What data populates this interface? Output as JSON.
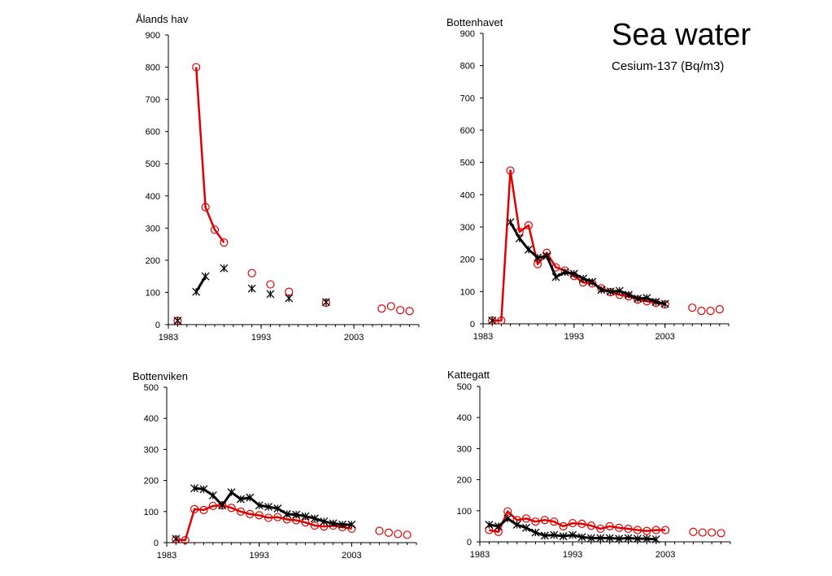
{
  "page": {
    "title": "Sea water",
    "subtitle": "Cesium-137 (Bq/m3)"
  },
  "colors": {
    "series_red": "#e00000",
    "series_black": "#000000",
    "axis": "#000000"
  },
  "chart_data": [
    {
      "type": "line",
      "title": "Ålands hav",
      "ylim": [
        0,
        900
      ],
      "yticks": [
        0,
        100,
        200,
        300,
        400,
        500,
        600,
        700,
        800,
        900
      ],
      "xlim": [
        1983,
        2010
      ],
      "xticks": [
        1983,
        1993,
        2003
      ],
      "grid": false,
      "series": [
        {
          "marker": "circle",
          "color": "red",
          "points": [
            [
              1984,
              12
            ],
            [
              1986,
              800
            ],
            [
              1987,
              365
            ],
            [
              1988,
              295
            ],
            [
              1989,
              255
            ],
            [
              1992,
              160
            ],
            [
              1994,
              125
            ],
            [
              1996,
              102
            ],
            [
              2000,
              68
            ],
            [
              2006,
              50
            ],
            [
              2007,
              57
            ],
            [
              2008,
              45
            ],
            [
              2009,
              42
            ]
          ],
          "connected_segments": [
            [
              1986,
              1989
            ]
          ]
        },
        {
          "marker": "asterisk",
          "color": "black",
          "points": [
            [
              1984,
              12
            ],
            [
              1986,
              102
            ],
            [
              1987,
              150
            ],
            [
              1989,
              175
            ],
            [
              1992,
              112
            ],
            [
              1994,
              95
            ],
            [
              1996,
              82
            ],
            [
              2000,
              70
            ]
          ],
          "connected_segments": [
            [
              1986,
              1987
            ]
          ]
        }
      ]
    },
    {
      "type": "line",
      "title": "Bottenhavet",
      "ylim": [
        0,
        900
      ],
      "yticks": [
        0,
        100,
        200,
        300,
        400,
        500,
        600,
        700,
        800,
        900
      ],
      "xlim": [
        1983,
        2010
      ],
      "xticks": [
        1983,
        1993,
        2003
      ],
      "grid": false,
      "series": [
        {
          "marker": "circle",
          "color": "red",
          "points": [
            [
              1984,
              10
            ],
            [
              1985,
              10
            ],
            [
              1986,
              475
            ],
            [
              1987,
              285
            ],
            [
              1988,
              305
            ],
            [
              1989,
              185
            ],
            [
              1990,
              220
            ],
            [
              1991,
              175
            ],
            [
              1992,
              165
            ],
            [
              1993,
              148
            ],
            [
              1994,
              128
            ],
            [
              1995,
              125
            ],
            [
              1996,
              110
            ],
            [
              1997,
              98
            ],
            [
              1998,
              90
            ],
            [
              1999,
              85
            ],
            [
              2000,
              75
            ],
            [
              2001,
              70
            ],
            [
              2002,
              65
            ],
            [
              2003,
              60
            ],
            [
              2006,
              50
            ],
            [
              2007,
              40
            ],
            [
              2008,
              40
            ],
            [
              2009,
              45
            ]
          ],
          "connected_segments": [
            [
              1984,
              2003
            ]
          ]
        },
        {
          "marker": "asterisk",
          "color": "black",
          "points": [
            [
              1984,
              10
            ],
            [
              1986,
              315
            ],
            [
              1987,
              265
            ],
            [
              1988,
              230
            ],
            [
              1989,
              205
            ],
            [
              1990,
              210
            ],
            [
              1991,
              145
            ],
            [
              1992,
              160
            ],
            [
              1993,
              155
            ],
            [
              1994,
              140
            ],
            [
              1995,
              130
            ],
            [
              1996,
              105
            ],
            [
              1997,
              100
            ],
            [
              1998,
              102
            ],
            [
              1999,
              90
            ],
            [
              2000,
              78
            ],
            [
              2001,
              80
            ],
            [
              2002,
              68
            ],
            [
              2003,
              62
            ]
          ],
          "connected_segments": [
            [
              1986,
              2003
            ]
          ]
        }
      ]
    },
    {
      "type": "line",
      "title": "Bottenviken",
      "ylim": [
        0,
        500
      ],
      "yticks": [
        0,
        100,
        200,
        300,
        400,
        500
      ],
      "xlim": [
        1983,
        2010
      ],
      "xticks": [
        1983,
        1993,
        2003
      ],
      "grid": false,
      "series": [
        {
          "marker": "circle",
          "color": "red",
          "points": [
            [
              1984,
              10
            ],
            [
              1985,
              8
            ],
            [
              1986,
              108
            ],
            [
              1987,
              105
            ],
            [
              1988,
              118
            ],
            [
              1989,
              120
            ],
            [
              1990,
              112
            ],
            [
              1991,
              100
            ],
            [
              1992,
              92
            ],
            [
              1993,
              88
            ],
            [
              1994,
              80
            ],
            [
              1995,
              82
            ],
            [
              1996,
              75
            ],
            [
              1997,
              72
            ],
            [
              1998,
              65
            ],
            [
              1999,
              55
            ],
            [
              2000,
              52
            ],
            [
              2001,
              55
            ],
            [
              2002,
              50
            ],
            [
              2003,
              45
            ],
            [
              2006,
              38
            ],
            [
              2007,
              32
            ],
            [
              2008,
              28
            ],
            [
              2009,
              25
            ]
          ],
          "connected_segments": [
            [
              1984,
              2003
            ]
          ]
        },
        {
          "marker": "asterisk",
          "color": "black",
          "points": [
            [
              1984,
              12
            ],
            [
              1986,
              175
            ],
            [
              1987,
              172
            ],
            [
              1988,
              152
            ],
            [
              1989,
              120
            ],
            [
              1990,
              162
            ],
            [
              1991,
              140
            ],
            [
              1992,
              145
            ],
            [
              1993,
              120
            ],
            [
              1994,
              115
            ],
            [
              1995,
              110
            ],
            [
              1996,
              92
            ],
            [
              1997,
              90
            ],
            [
              1998,
              85
            ],
            [
              1999,
              78
            ],
            [
              2000,
              68
            ],
            [
              2001,
              62
            ],
            [
              2002,
              58
            ],
            [
              2003,
              58
            ]
          ],
          "connected_segments": [
            [
              1986,
              2003
            ]
          ]
        }
      ]
    },
    {
      "type": "line",
      "title": "Kattegatt",
      "ylim": [
        0,
        500
      ],
      "yticks": [
        0,
        100,
        200,
        300,
        400,
        500
      ],
      "xlim": [
        1983,
        2010
      ],
      "xticks": [
        1983,
        1993,
        2003
      ],
      "grid": false,
      "series": [
        {
          "marker": "circle",
          "color": "red",
          "points": [
            [
              1984,
              38
            ],
            [
              1985,
              32
            ],
            [
              1986,
              98
            ],
            [
              1987,
              70
            ],
            [
              1988,
              75
            ],
            [
              1989,
              65
            ],
            [
              1990,
              70
            ],
            [
              1991,
              65
            ],
            [
              1992,
              50
            ],
            [
              1993,
              60
            ],
            [
              1994,
              58
            ],
            [
              1995,
              52
            ],
            [
              1996,
              42
            ],
            [
              1997,
              50
            ],
            [
              1998,
              45
            ],
            [
              1999,
              42
            ],
            [
              2000,
              38
            ],
            [
              2001,
              35
            ],
            [
              2002,
              38
            ],
            [
              2003,
              38
            ],
            [
              2006,
              32
            ],
            [
              2007,
              30
            ],
            [
              2008,
              30
            ],
            [
              2009,
              28
            ]
          ],
          "connected_segments": [
            [
              1984,
              2003
            ]
          ]
        },
        {
          "marker": "asterisk",
          "color": "black",
          "points": [
            [
              1984,
              55
            ],
            [
              1985,
              50
            ],
            [
              1986,
              75
            ],
            [
              1987,
              55
            ],
            [
              1988,
              45
            ],
            [
              1989,
              30
            ],
            [
              1990,
              20
            ],
            [
              1991,
              22
            ],
            [
              1992,
              18
            ],
            [
              1993,
              22
            ],
            [
              1994,
              15
            ],
            [
              1995,
              12
            ],
            [
              1996,
              12
            ],
            [
              1997,
              12
            ],
            [
              1998,
              10
            ],
            [
              1999,
              12
            ],
            [
              2000,
              10
            ],
            [
              2001,
              10
            ],
            [
              2002,
              8
            ]
          ],
          "connected_segments": [
            [
              1984,
              2002
            ]
          ]
        }
      ]
    }
  ]
}
